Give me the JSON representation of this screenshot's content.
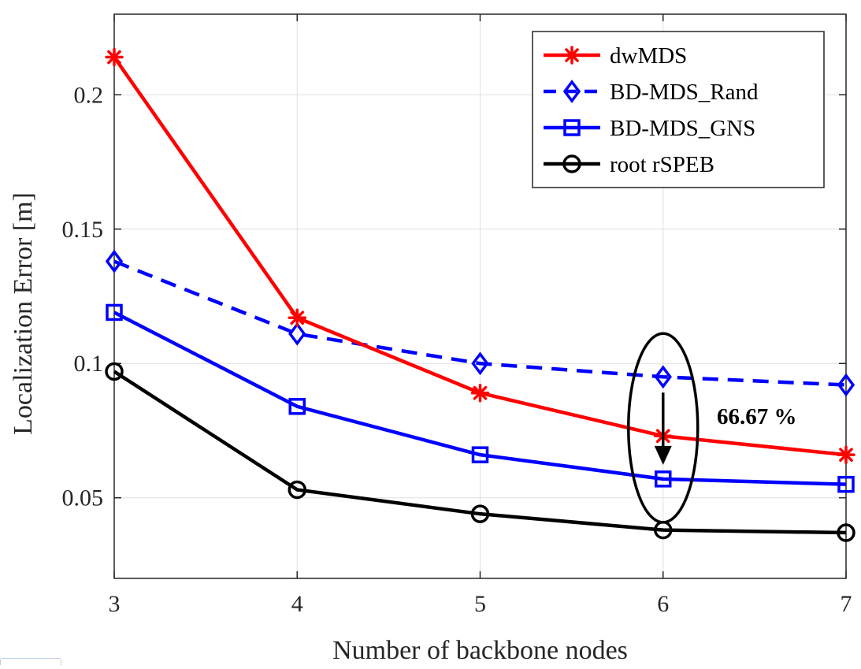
{
  "chart_data": {
    "type": "line",
    "title": "",
    "xlabel": "Number of backbone nodes",
    "ylabel": "Localization Error [m]",
    "x": [
      3,
      4,
      5,
      6,
      7
    ],
    "xlim": [
      3,
      7
    ],
    "ylim": [
      0.02,
      0.23
    ],
    "xticks": [
      3,
      4,
      5,
      6,
      7
    ],
    "xtick_labels": [
      "3",
      "4",
      "5",
      "6",
      "7"
    ],
    "yticks": [
      0.05,
      0.1,
      0.15,
      0.2
    ],
    "ytick_labels": [
      "0.05",
      "0.1",
      "0.15",
      "0.2"
    ],
    "grid": true,
    "legend_position": "top-right",
    "series": [
      {
        "name": "dwMDS",
        "values": [
          0.214,
          0.117,
          0.089,
          0.073,
          0.066
        ],
        "color": "#ff0000",
        "marker": "asterisk",
        "linestyle": "solid"
      },
      {
        "name": "BD-MDS_Rand",
        "values": [
          0.138,
          0.111,
          0.1,
          0.095,
          0.092
        ],
        "color": "#0000ff",
        "marker": "diamond",
        "linestyle": "dashed"
      },
      {
        "name": "BD-MDS_GNS",
        "values": [
          0.119,
          0.084,
          0.066,
          0.057,
          0.055
        ],
        "color": "#0000ff",
        "marker": "square",
        "linestyle": "solid"
      },
      {
        "name": "root rSPEB",
        "values": [
          0.097,
          0.053,
          0.044,
          0.038,
          0.037
        ],
        "color": "#000000",
        "marker": "circle",
        "linestyle": "solid"
      }
    ],
    "annotations": [
      {
        "text": "66.67 %",
        "x": 6,
        "from_y": 0.095,
        "to_y": 0.057,
        "shape": "ellipse-with-down-arrow"
      }
    ]
  }
}
